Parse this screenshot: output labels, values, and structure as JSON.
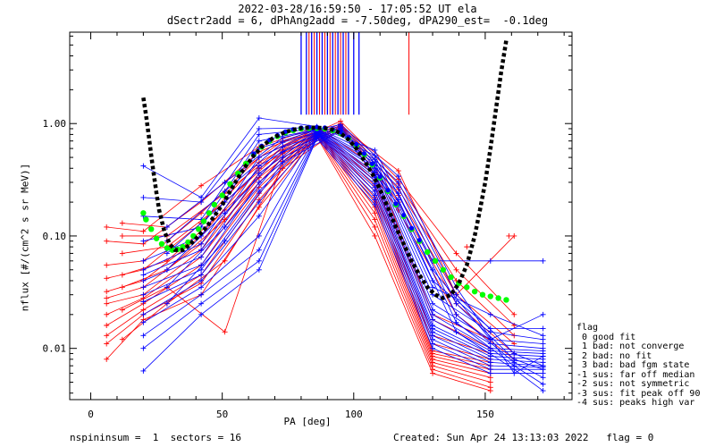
{
  "header": {
    "title_line1": "2022-03-28/16:59:50 - 17:05:52 UT ela",
    "title_line2": "dSectr2add = 6, dPhAng2add = -7.50deg, dPA290_est=  -0.1deg"
  },
  "footer": {
    "left": "nspininsum =  1  sectors = 16",
    "right": "Created: Sun Apr 24 13:13:03 2022   flag = 0"
  },
  "legend": {
    "title": "flag",
    "items": [
      " 0 good fit",
      " 1 bad: not converge",
      " 2 bad: no fit",
      " 3 bad: bad fgm state",
      "-1 sus: far off median",
      "-2 sus: not symmetric",
      "-3 sus: fit peak off 90",
      "-4 sus: peaks high var"
    ]
  },
  "colors": {
    "red": "#ff0000",
    "blue": "#0000ff",
    "green": "#00ff00",
    "black": "#000000"
  },
  "chart_data": {
    "type": "line",
    "xlabel": "PA [deg]",
    "ylabel": "nflux [#/(cm^2 s sr MeV)]",
    "xlim": [
      -8,
      183
    ],
    "ylim": [
      0.0035,
      6.5
    ],
    "yscale": "log",
    "xticks": [
      0,
      50,
      100,
      150
    ],
    "yticks": [
      0.01,
      0.1,
      1.0
    ],
    "ytick_labels": [
      "0.01",
      "0.10",
      "1.00"
    ],
    "grid": false,
    "red_series": [
      {
        "pa": [
          6,
          20,
          42,
          64,
          86,
          108,
          130,
          152
        ],
        "flux": [
          0.12,
          0.11,
          0.28,
          0.62,
          0.93,
          0.42,
          0.02,
          0.012
        ]
      },
      {
        "pa": [
          6,
          20,
          42,
          64,
          86,
          108,
          130,
          152
        ],
        "flux": [
          0.09,
          0.085,
          0.2,
          0.56,
          0.91,
          0.35,
          0.018,
          0.01
        ]
      },
      {
        "pa": [
          6,
          20,
          42,
          64,
          86,
          108,
          130,
          152
        ],
        "flux": [
          0.055,
          0.06,
          0.16,
          0.5,
          0.9,
          0.31,
          0.013,
          0.009
        ]
      },
      {
        "pa": [
          6,
          20,
          42,
          64,
          86,
          108,
          130,
          152
        ],
        "flux": [
          0.042,
          0.05,
          0.13,
          0.45,
          0.88,
          0.28,
          0.011,
          0.008
        ]
      },
      {
        "pa": [
          6,
          20,
          42,
          64,
          86,
          108,
          130,
          152
        ],
        "flux": [
          0.032,
          0.04,
          0.1,
          0.4,
          0.86,
          0.25,
          0.0095,
          0.0075
        ]
      },
      {
        "pa": [
          6,
          20,
          42,
          64,
          86,
          108,
          130,
          152
        ],
        "flux": [
          0.028,
          0.035,
          0.085,
          0.36,
          0.85,
          0.22,
          0.009,
          0.007
        ]
      },
      {
        "pa": [
          6,
          20,
          42,
          64,
          86,
          108,
          130,
          152
        ],
        "flux": [
          0.025,
          0.03,
          0.075,
          0.33,
          0.84,
          0.2,
          0.0085,
          0.0065
        ]
      },
      {
        "pa": [
          6,
          20,
          42,
          64,
          86,
          108,
          130,
          152
        ],
        "flux": [
          0.02,
          0.028,
          0.065,
          0.3,
          0.83,
          0.18,
          0.008,
          0.006
        ]
      },
      {
        "pa": [
          6,
          20,
          42,
          64,
          86,
          108,
          130,
          152
        ],
        "flux": [
          0.016,
          0.025,
          0.055,
          0.27,
          0.82,
          0.16,
          0.0075,
          0.0055
        ]
      },
      {
        "pa": [
          6,
          20,
          42,
          64,
          86,
          108,
          130,
          152
        ],
        "flux": [
          0.013,
          0.022,
          0.045,
          0.24,
          0.8,
          0.14,
          0.007,
          0.005
        ]
      },
      {
        "pa": [
          6,
          20,
          42,
          64,
          86,
          108,
          130,
          152
        ],
        "flux": [
          0.011,
          0.02,
          0.038,
          0.21,
          0.78,
          0.12,
          0.0065,
          0.0045
        ]
      },
      {
        "pa": [
          6,
          20,
          42,
          64,
          86,
          108,
          130,
          152
        ],
        "flux": [
          0.008,
          0.018,
          0.03,
          0.18,
          0.76,
          0.1,
          0.006,
          0.0042
        ]
      },
      {
        "pa": [
          12,
          29,
          51,
          73,
          95,
          117,
          139,
          161
        ],
        "flux": [
          0.13,
          0.12,
          0.3,
          0.7,
          0.95,
          0.38,
          0.03,
          0.1
        ]
      },
      {
        "pa": [
          12,
          29,
          51,
          73,
          95,
          117,
          139,
          161
        ],
        "flux": [
          0.1,
          0.1,
          0.24,
          0.62,
          1.05,
          0.32,
          0.07,
          0.02
        ]
      },
      {
        "pa": [
          12,
          29,
          51,
          73,
          95,
          117,
          139,
          161
        ],
        "flux": [
          0.07,
          0.08,
          0.2,
          0.58,
          1.0,
          0.29,
          0.05,
          0.016
        ]
      },
      {
        "pa": [
          12,
          29,
          51,
          73,
          95,
          117,
          139,
          161
        ],
        "flux": [
          0.045,
          0.06,
          0.17,
          0.54,
          0.97,
          0.26,
          0.04,
          0.013
        ]
      },
      {
        "pa": [
          12,
          29,
          51,
          73,
          95,
          117,
          139,
          161
        ],
        "flux": [
          0.035,
          0.05,
          0.14,
          0.5,
          0.95,
          0.23,
          0.03,
          0.011
        ]
      },
      {
        "pa": [
          12,
          29,
          51,
          73,
          95,
          117,
          139,
          161
        ],
        "flux": [
          0.022,
          0.035,
          0.014,
          0.46,
          0.93,
          0.2,
          0.025,
          0.009
        ]
      },
      {
        "pa": [
          12,
          29,
          51,
          73,
          95,
          117,
          139,
          161
        ],
        "flux": [
          0.012,
          0.025,
          0.06,
          0.4,
          0.9,
          0.17,
          0.02,
          0.008
        ]
      }
    ],
    "blue_series": [
      {
        "pa": [
          20,
          42,
          64,
          86,
          108,
          130,
          152,
          172
        ],
        "flux": [
          0.42,
          0.22,
          1.12,
          0.94,
          0.58,
          0.06,
          0.06,
          0.06
        ]
      },
      {
        "pa": [
          20,
          42,
          64,
          86,
          108,
          130,
          152,
          172
        ],
        "flux": [
          0.22,
          0.2,
          0.9,
          0.92,
          0.52,
          0.05,
          0.012,
          0.02
        ]
      },
      {
        "pa": [
          20,
          42,
          64,
          86,
          108,
          130,
          152,
          172
        ],
        "flux": [
          0.15,
          0.14,
          0.8,
          0.9,
          0.48,
          0.04,
          0.015,
          0.015
        ]
      },
      {
        "pa": [
          20,
          42,
          64,
          86,
          108,
          130,
          152,
          172
        ],
        "flux": [
          0.09,
          0.12,
          0.7,
          0.89,
          0.45,
          0.035,
          0.02,
          0.013
        ]
      },
      {
        "pa": [
          20,
          42,
          64,
          86,
          108,
          130,
          152,
          172
        ],
        "flux": [
          0.06,
          0.1,
          0.6,
          0.88,
          0.42,
          0.03,
          0.014,
          0.012
        ]
      },
      {
        "pa": [
          20,
          42,
          64,
          86,
          108,
          130,
          152,
          172
        ],
        "flux": [
          0.05,
          0.085,
          0.5,
          0.87,
          0.4,
          0.025,
          0.012,
          0.011
        ]
      },
      {
        "pa": [
          20,
          42,
          64,
          86,
          108,
          130,
          152,
          172
        ],
        "flux": [
          0.045,
          0.075,
          0.42,
          0.86,
          0.37,
          0.022,
          0.011,
          0.01
        ]
      },
      {
        "pa": [
          20,
          42,
          64,
          86,
          108,
          130,
          152,
          172
        ],
        "flux": [
          0.04,
          0.065,
          0.36,
          0.85,
          0.35,
          0.02,
          0.01,
          0.0095
        ]
      },
      {
        "pa": [
          20,
          42,
          64,
          86,
          108,
          130,
          152,
          172
        ],
        "flux": [
          0.035,
          0.055,
          0.3,
          0.84,
          0.33,
          0.018,
          0.0095,
          0.009
        ]
      },
      {
        "pa": [
          20,
          42,
          64,
          86,
          108,
          130,
          152,
          172
        ],
        "flux": [
          0.03,
          0.05,
          0.25,
          0.83,
          0.31,
          0.016,
          0.009,
          0.0085
        ]
      },
      {
        "pa": [
          20,
          42,
          64,
          86,
          108,
          130,
          152,
          172
        ],
        "flux": [
          0.026,
          0.045,
          0.2,
          0.82,
          0.29,
          0.015,
          0.0085,
          0.008
        ]
      },
      {
        "pa": [
          20,
          42,
          64,
          86,
          108,
          130,
          152,
          172
        ],
        "flux": [
          0.02,
          0.04,
          0.15,
          0.81,
          0.27,
          0.014,
          0.008,
          0.0075
        ]
      },
      {
        "pa": [
          20,
          42,
          64,
          86,
          108,
          130,
          152,
          172
        ],
        "flux": [
          0.017,
          0.035,
          0.1,
          0.8,
          0.25,
          0.013,
          0.0075,
          0.007
        ]
      },
      {
        "pa": [
          20,
          42,
          64,
          86,
          108,
          130,
          152,
          172
        ],
        "flux": [
          0.013,
          0.03,
          0.075,
          0.78,
          0.23,
          0.012,
          0.007,
          0.0068
        ]
      },
      {
        "pa": [
          20,
          42,
          64,
          86,
          108,
          130,
          152,
          172
        ],
        "flux": [
          0.01,
          0.025,
          0.06,
          0.76,
          0.21,
          0.011,
          0.0065,
          0.0065
        ]
      },
      {
        "pa": [
          20,
          42,
          64,
          86,
          108,
          130,
          152,
          172
        ],
        "flux": [
          0.0063,
          0.02,
          0.05,
          0.74,
          0.19,
          0.01,
          0.006,
          0.006
        ]
      },
      {
        "pa": [
          29,
          51,
          73,
          95,
          117,
          139,
          161,
          172
        ],
        "flux": [
          0.12,
          0.3,
          0.75,
          0.98,
          0.34,
          0.035,
          0.006,
          0.0085
        ]
      },
      {
        "pa": [
          29,
          51,
          73,
          95,
          117,
          139,
          161,
          172
        ],
        "flux": [
          0.09,
          0.25,
          0.68,
          0.95,
          0.3,
          0.03,
          0.009,
          0.007
        ]
      },
      {
        "pa": [
          29,
          51,
          73,
          95,
          117,
          139,
          161,
          172
        ],
        "flux": [
          0.07,
          0.2,
          0.62,
          0.92,
          0.27,
          0.025,
          0.008,
          0.0065
        ]
      },
      {
        "pa": [
          29,
          51,
          73,
          95,
          117,
          139,
          161,
          172
        ],
        "flux": [
          0.05,
          0.16,
          0.56,
          0.9,
          0.24,
          0.02,
          0.0075,
          0.0055
        ]
      },
      {
        "pa": [
          29,
          51,
          73,
          95,
          117,
          139,
          161,
          172
        ],
        "flux": [
          0.035,
          0.12,
          0.5,
          0.88,
          0.21,
          0.017,
          0.007,
          0.0048
        ]
      },
      {
        "pa": [
          29,
          51,
          73,
          95,
          117,
          139,
          161,
          172
        ],
        "flux": [
          0.025,
          0.09,
          0.45,
          0.86,
          0.19,
          0.014,
          0.0065,
          0.0042
        ]
      }
    ],
    "green_fit": {
      "pa": [
        20,
        21,
        23,
        25,
        27,
        29,
        31,
        33,
        35,
        37,
        39,
        41,
        43,
        45,
        47,
        50,
        53,
        56,
        59,
        62,
        65,
        68,
        71,
        74,
        77,
        80,
        83,
        86,
        89,
        92,
        95,
        98,
        101,
        104,
        107,
        110,
        113,
        116,
        119,
        122,
        125,
        128,
        131,
        134,
        137,
        140,
        143,
        146,
        149,
        152,
        155,
        158
      ],
      "flux": [
        0.16,
        0.14,
        0.115,
        0.095,
        0.085,
        0.078,
        0.075,
        0.076,
        0.08,
        0.088,
        0.1,
        0.115,
        0.135,
        0.16,
        0.19,
        0.23,
        0.29,
        0.36,
        0.44,
        0.53,
        0.62,
        0.7,
        0.77,
        0.83,
        0.87,
        0.9,
        0.91,
        0.91,
        0.9,
        0.87,
        0.82,
        0.74,
        0.64,
        0.53,
        0.43,
        0.33,
        0.25,
        0.19,
        0.15,
        0.115,
        0.09,
        0.072,
        0.06,
        0.05,
        0.043,
        0.038,
        0.035,
        0.032,
        0.03,
        0.029,
        0.028,
        0.027
      ]
    },
    "black_fit": {
      "pa": [
        20,
        21,
        22,
        23,
        24,
        25,
        26,
        28,
        30,
        32,
        35,
        38,
        41,
        44,
        47,
        50,
        53,
        56,
        59,
        62,
        65,
        68,
        71,
        74,
        77,
        80,
        83,
        86,
        89,
        92,
        95,
        98,
        101,
        104,
        107,
        110,
        113,
        116,
        119,
        122,
        125,
        128,
        131,
        134,
        137,
        140,
        143,
        146,
        148,
        150,
        152,
        154,
        156,
        158
      ],
      "flux": [
        1.7,
        1.2,
        0.8,
        0.52,
        0.35,
        0.24,
        0.17,
        0.11,
        0.085,
        0.075,
        0.075,
        0.085,
        0.1,
        0.12,
        0.15,
        0.19,
        0.25,
        0.33,
        0.42,
        0.52,
        0.62,
        0.71,
        0.78,
        0.84,
        0.88,
        0.91,
        0.92,
        0.92,
        0.91,
        0.88,
        0.82,
        0.72,
        0.6,
        0.47,
        0.36,
        0.26,
        0.18,
        0.12,
        0.085,
        0.06,
        0.045,
        0.035,
        0.03,
        0.028,
        0.03,
        0.038,
        0.055,
        0.1,
        0.17,
        0.3,
        0.6,
        1.3,
        2.8,
        5.5
      ]
    },
    "red_markers": [
      {
        "pa": 159,
        "flux": 0.1
      },
      {
        "pa": 143,
        "flux": 0.08
      }
    ],
    "vertical_lines": {
      "red": [
        83,
        85,
        87,
        89,
        91,
        93,
        95,
        97,
        121
      ],
      "blue": [
        80,
        82,
        84,
        86,
        88,
        90,
        92,
        94,
        96,
        98,
        100,
        102
      ]
    }
  }
}
